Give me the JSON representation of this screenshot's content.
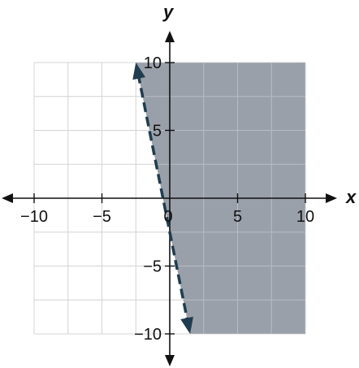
{
  "chart_data": {
    "type": "inequality",
    "xlabel": "x",
    "ylabel": "y",
    "xlim": [
      -10,
      10
    ],
    "ylim": [
      -10,
      10
    ],
    "grid": true,
    "grid_step": 2.5,
    "x_ticks": [
      -10,
      -5,
      0,
      5,
      10
    ],
    "y_ticks": [
      -10,
      -5,
      5,
      10
    ],
    "x_tick_labels": [
      "−10",
      "−5",
      "0",
      "5",
      "10"
    ],
    "y_tick_labels": [
      "−10",
      "−5",
      "5",
      "10"
    ],
    "boundary": {
      "style": "dashed",
      "from": [
        -2.5,
        10
      ],
      "to": [
        1.5,
        -10
      ],
      "slope": -5,
      "y_intercept": -2.5
    },
    "shaded_region": "right of boundary",
    "colors": {
      "shade": "#9aa0aa",
      "boundary": "#1f3d4f",
      "grid_unshaded": "#d4d4d4",
      "grid_shaded": "#b7bcc4",
      "axis": "#111111"
    }
  }
}
